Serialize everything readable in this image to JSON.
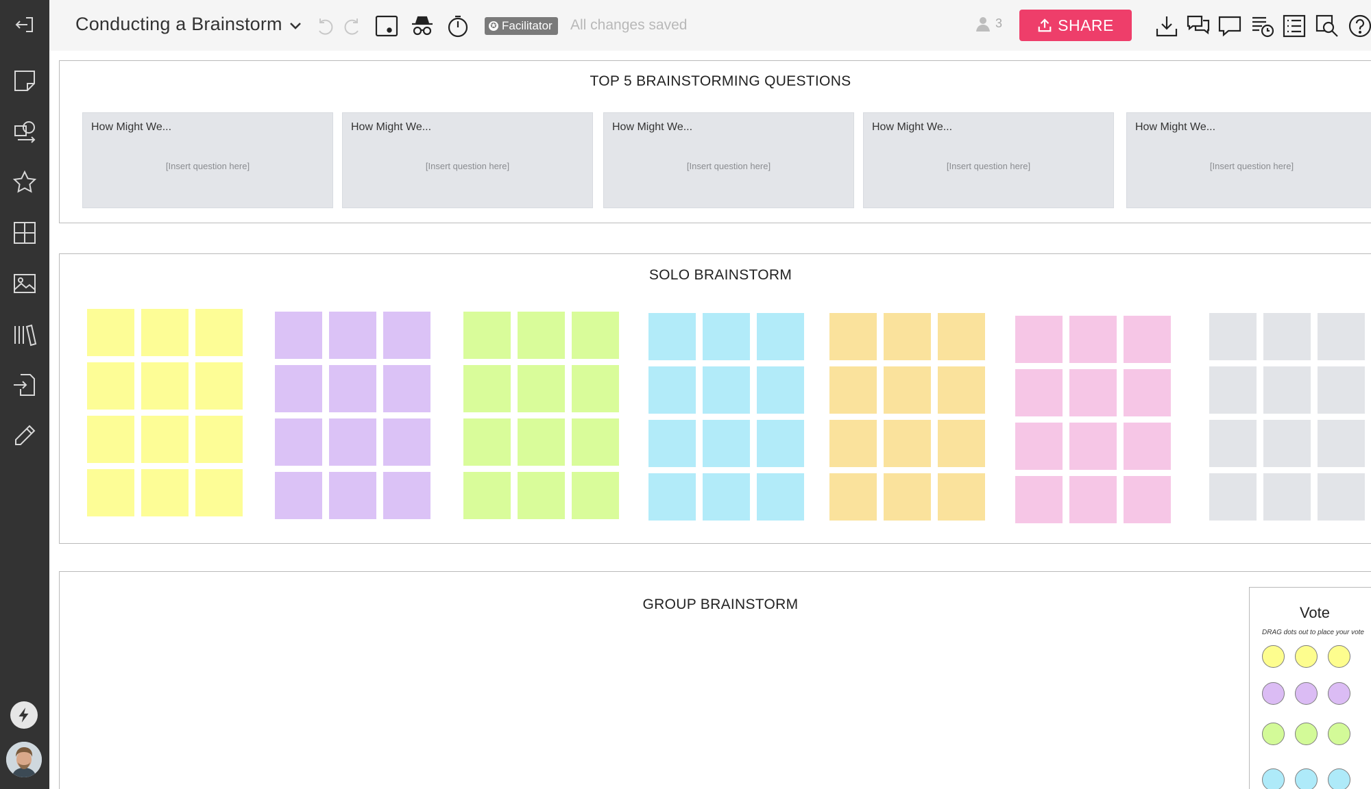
{
  "app": {
    "document_title": "Conducting a Brainstorm",
    "facilitator_label": "Facilitator",
    "save_status": "All changes saved",
    "user_count": "3",
    "share_label": "SHARE"
  },
  "sidebar": {
    "items": [
      {
        "name": "exit-icon"
      },
      {
        "name": "sticky-note-icon"
      },
      {
        "name": "shapes-search-icon"
      },
      {
        "name": "star-icon"
      },
      {
        "name": "templates-grid-icon"
      },
      {
        "name": "image-icon"
      },
      {
        "name": "library-icon"
      },
      {
        "name": "import-icon"
      },
      {
        "name": "pencil-icon"
      }
    ]
  },
  "toolbar_icons": [
    "undo-icon",
    "redo-icon",
    "presentation-icon",
    "incognito-icon",
    "timer-icon",
    "download-icon",
    "chat-icon",
    "comment-icon",
    "activity-icon",
    "outline-icon",
    "search-icon",
    "help-icon"
  ],
  "frames": {
    "questions": {
      "title": "TOP 5 BRAINSTORMING QUESTIONS",
      "cards": [
        {
          "heading": "How Might We...",
          "placeholder": "[Insert question here]"
        },
        {
          "heading": "How Might We...",
          "placeholder": "[Insert question here]"
        },
        {
          "heading": "How Might We...",
          "placeholder": "[Insert question here]"
        },
        {
          "heading": "How Might We...",
          "placeholder": "[Insert question here]"
        },
        {
          "heading": "How Might We...",
          "placeholder": "[Insert question here]"
        }
      ]
    },
    "solo": {
      "title": "SOLO BRAINSTORM",
      "note_groups": [
        {
          "color": "#fdfd96"
        },
        {
          "color": "#dbc2f6"
        },
        {
          "color": "#d9fc9a"
        },
        {
          "color": "#b2ebf9"
        },
        {
          "color": "#fae29c"
        },
        {
          "color": "#f6c6e6"
        },
        {
          "color": "#e2e4e8"
        }
      ]
    },
    "group": {
      "title": "GROUP BRAINSTORM"
    },
    "vote": {
      "title": "Vote",
      "subtitle": "DRAG dots out to place your vote",
      "dot_rows": [
        "#fdfd8e",
        "#dbbcf4",
        "#d3fa98",
        "#aeeaf9"
      ]
    }
  }
}
